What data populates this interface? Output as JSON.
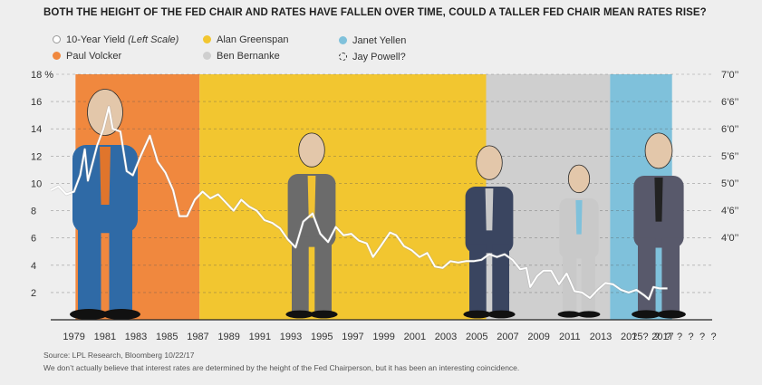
{
  "title": "BOTH THE HEIGHT OF THE FED CHAIR AND RATES HAVE FALLEN OVER TIME, COULD A TALLER FED CHAIR MEAN RATES RISE?",
  "legend": {
    "yield": {
      "label_main": "10-Year Yield ",
      "label_em": "(Left Scale)",
      "color": "#ffffff"
    },
    "volcker": {
      "label": "Paul Volcker",
      "color": "#f0883e"
    },
    "greenspan": {
      "label": "Alan Greenspan",
      "color": "#f2c630"
    },
    "bernanke": {
      "label": "Ben Bernanke",
      "color": "#cfcfcf"
    },
    "yellen": {
      "label": "Janet Yellen",
      "color": "#7fc1db"
    },
    "powell": {
      "label": "Jay Powell?",
      "color": "none"
    }
  },
  "footer": {
    "source": "Source: LPL Research, Bloomberg   10/22/17",
    "note": "We don’t actually believe that interest rates are determined by the height of the Fed Chairperson, but it has been an interesting coincidence."
  },
  "chart_data": {
    "type": "line",
    "title": "BOTH THE HEIGHT OF THE FED CHAIR AND RATES HAVE FALLEN OVER TIME, COULD A TALLER FED CHAIR MEAN RATES RISE?",
    "xlabel": "",
    "ylabel": "",
    "ylim": [
      0,
      18
    ],
    "y_ticks": [
      "2",
      "4",
      "6",
      "8",
      "10",
      "12",
      "14",
      "16",
      "18 %"
    ],
    "y_right_ticks": [
      "4’0’’",
      "4’6’’",
      "5’0’’",
      "5’6’’",
      "6’0’’",
      "6’6’’",
      "7’0’’"
    ],
    "x_ticks": [
      "1979",
      "1981",
      "1983",
      "1985",
      "1987",
      "1989",
      "1991",
      "1993",
      "1995",
      "1997",
      "1999",
      "2001",
      "2003",
      "2005",
      "2007",
      "2009",
      "2011",
      "2013",
      "2015",
      "2017"
    ],
    "future_ticks": [
      "?",
      "?",
      "?",
      "?",
      "?",
      "?",
      "?",
      "?"
    ],
    "grid": true,
    "legend_position": "top-left",
    "chairs": [
      {
        "name": "Paul Volcker",
        "start": 1979.6,
        "end": 1987.6,
        "color": "#f0883e"
      },
      {
        "name": "Alan Greenspan",
        "start": 1987.6,
        "end": 2006.1,
        "color": "#f2c630"
      },
      {
        "name": "Ben Bernanke",
        "start": 2006.1,
        "end": 2014.1,
        "color": "#cfcfcf"
      },
      {
        "name": "Janet Yellen",
        "start": 2014.1,
        "end": 2018.1,
        "color": "#7fc1db"
      }
    ],
    "series": [
      {
        "name": "10-Year Yield",
        "x": [
          1978.0,
          1978.5,
          1979.0,
          1979.5,
          1979.9,
          1980.2,
          1980.4,
          1980.7,
          1981.0,
          1981.4,
          1981.75,
          1982.0,
          1982.5,
          1982.9,
          1983.3,
          1983.8,
          1984.4,
          1984.9,
          1985.4,
          1985.9,
          1986.3,
          1986.8,
          1987.3,
          1987.8,
          1988.3,
          1988.8,
          1989.3,
          1989.8,
          1990.3,
          1990.8,
          1991.3,
          1991.8,
          1992.3,
          1992.8,
          1993.3,
          1993.8,
          1994.3,
          1994.9,
          1995.4,
          1995.9,
          1996.4,
          1996.9,
          1997.4,
          1997.9,
          1998.4,
          1998.8,
          1999.3,
          1999.9,
          2000.3,
          2000.8,
          2001.3,
          2001.8,
          2002.3,
          2002.8,
          2003.3,
          2003.8,
          2004.3,
          2004.8,
          2005.3,
          2005.8,
          2006.3,
          2006.8,
          2007.3,
          2007.8,
          2008.3,
          2008.7,
          2008.95,
          2009.4,
          2009.8,
          2010.3,
          2010.8,
          2011.3,
          2011.8,
          2012.3,
          2012.8,
          2013.3,
          2013.8,
          2014.3,
          2014.8,
          2015.3,
          2015.8,
          2016.3,
          2016.6,
          2016.9,
          2017.3,
          2017.8
        ],
        "values": [
          9.5,
          9.8,
          9.2,
          9.4,
          10.6,
          12.5,
          10.2,
          11.5,
          12.8,
          14.0,
          15.6,
          14.0,
          13.8,
          10.9,
          10.6,
          12.0,
          13.5,
          11.6,
          10.8,
          9.5,
          7.6,
          7.6,
          8.8,
          9.4,
          8.9,
          9.2,
          8.6,
          8.0,
          8.8,
          8.3,
          8.0,
          7.3,
          7.1,
          6.7,
          5.9,
          5.3,
          7.2,
          7.8,
          6.3,
          5.7,
          6.8,
          6.2,
          6.3,
          5.8,
          5.6,
          4.6,
          5.4,
          6.4,
          6.2,
          5.4,
          5.1,
          4.6,
          4.9,
          3.9,
          3.8,
          4.3,
          4.2,
          4.3,
          4.3,
          4.4,
          4.8,
          4.6,
          4.8,
          4.4,
          3.7,
          3.8,
          2.4,
          3.2,
          3.6,
          3.6,
          2.6,
          3.4,
          2.1,
          2.0,
          1.6,
          2.2,
          2.7,
          2.6,
          2.2,
          2.0,
          2.2,
          1.8,
          1.5,
          2.4,
          2.3,
          2.3
        ]
      }
    ]
  }
}
